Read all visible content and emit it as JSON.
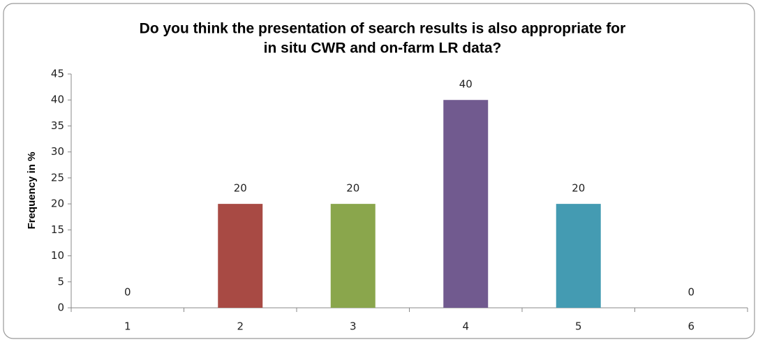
{
  "chart_data": {
    "type": "bar",
    "title": [
      "Do you think the presentation of search results is also appropriate for",
      "in situ CWR and on-farm LR data?"
    ],
    "y_label": "Frequency in %",
    "categories": [
      "1",
      "2",
      "3",
      "4",
      "5",
      "6"
    ],
    "values": [
      0,
      20,
      20,
      40,
      20,
      0
    ],
    "colors": [
      "#4f81bd",
      "#a84a44",
      "#8aa64c",
      "#715a8f",
      "#449bb2",
      "#f79646"
    ],
    "ylim": [
      0,
      45
    ],
    "yticks": [
      0,
      5,
      10,
      15,
      20,
      25,
      30,
      35,
      40,
      45
    ],
    "grid": false
  }
}
